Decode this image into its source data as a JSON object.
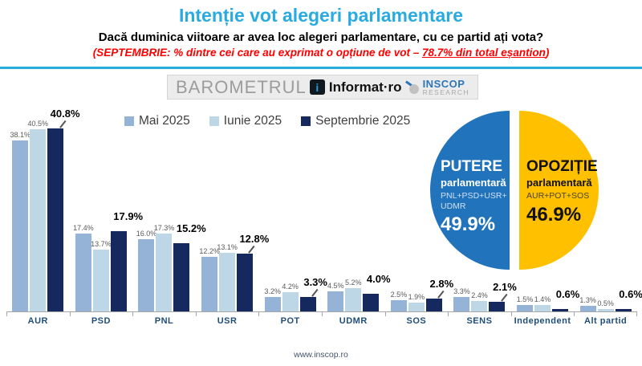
{
  "header": {
    "title": "Intenție vot alegeri parlamentare",
    "subtitle": "Dacă duminica viitoare ar avea loc alegeri parlamentare, cu ce partid ați vota?",
    "note_prefix": "(SEPTEMBRIE: % dintre cei care au exprimat o opțiune de vot – ",
    "note_highlight": "78.7% din total eșantion",
    "note_suffix": ")"
  },
  "branding": {
    "barometrul": "BAROMETRUL",
    "informat_icon": "i",
    "informat": "Informat·ro",
    "inscop_name": "INSCOP",
    "inscop_sub": "RESEARCH"
  },
  "chart_data": [
    {
      "type": "bar",
      "title": "Intenție vot alegeri parlamentare",
      "categories": [
        "AUR",
        "PSD",
        "PNL",
        "USR",
        "POT",
        "UDMR",
        "SOS",
        "SENS",
        "Independent",
        "Alt partid"
      ],
      "series": [
        {
          "name": "Mai 2025",
          "color": "#95b3d7",
          "values": [
            38.1,
            17.4,
            16.0,
            12.2,
            3.2,
            4.5,
            2.5,
            3.3,
            1.5,
            1.3
          ]
        },
        {
          "name": "Iunie 2025",
          "color": "#bdd7e7",
          "values": [
            40.5,
            13.7,
            17.3,
            13.1,
            4.2,
            5.2,
            1.9,
            2.4,
            1.4,
            0.5
          ]
        },
        {
          "name": "Septembrie 2025",
          "color": "#15295f",
          "values": [
            40.8,
            17.9,
            15.2,
            12.8,
            3.3,
            4.0,
            2.8,
            2.1,
            0.6,
            0.6
          ]
        }
      ],
      "value_suffix": "%",
      "ylim": [
        0,
        43
      ],
      "grid": false,
      "legend_position": "top",
      "sept_leaders": [
        true,
        false,
        false,
        true,
        true,
        false,
        true,
        true,
        false,
        false
      ]
    },
    {
      "type": "pie",
      "slices": [
        {
          "label": "PUTERE",
          "sublabel": "parlamentară",
          "detail": "PNL+PSD+USR+\nUDMR",
          "value": 49.9,
          "value_label": "49.9%",
          "color": "#2173bc",
          "text_color": "#ffffff",
          "detail_color": "#dce9f7"
        },
        {
          "label": "OPOZIȚIE",
          "sublabel": "parlamentară",
          "detail": "AUR+POT+SOS",
          "value": 46.9,
          "value_label": "46.9%",
          "color": "#ffc000",
          "text_color": "#111111",
          "detail_color": "#3a3a3a"
        }
      ]
    }
  ],
  "footer": {
    "url": "www.inscop.ro"
  }
}
